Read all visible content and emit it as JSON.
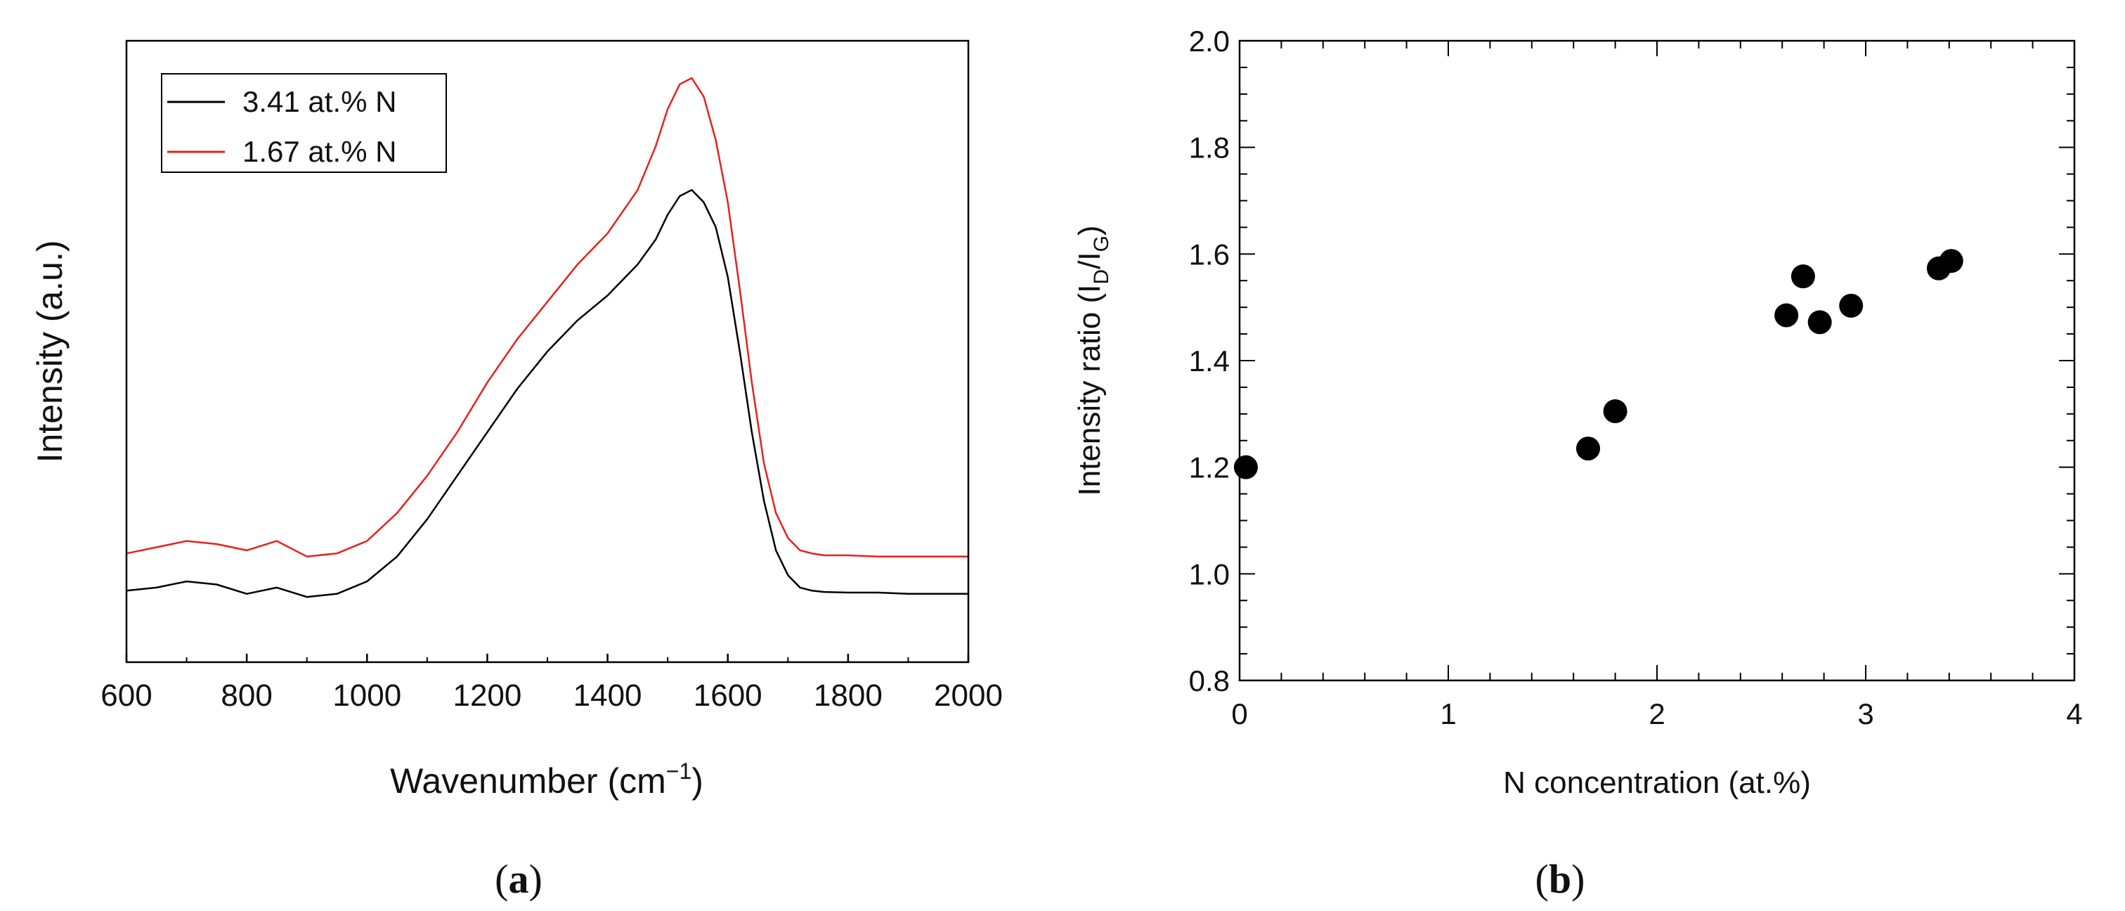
{
  "chart_data": [
    {
      "panel": "a",
      "type": "line",
      "panel_label": {
        "open": "(",
        "letter": "a",
        "close": ")"
      },
      "xlabel": {
        "text": "Wavenumber (cm",
        "sup": "−1",
        "close": ")"
      },
      "ylabel": "Intensity (a.u.)",
      "xlim": [
        600,
        2000
      ],
      "ylim": [
        0,
        1.0
      ],
      "xticks": [
        "600",
        "800",
        "1000",
        "1200",
        "1400",
        "1600",
        "1800",
        "2000"
      ],
      "yticks_shown": false,
      "legend_position": "top-left",
      "series": [
        {
          "name": "3.41 at.% N",
          "color": "#000000",
          "x": [
            600,
            650,
            700,
            750,
            800,
            850,
            900,
            950,
            1000,
            1050,
            1100,
            1150,
            1200,
            1250,
            1300,
            1350,
            1400,
            1450,
            1480,
            1500,
            1520,
            1540,
            1560,
            1580,
            1600,
            1620,
            1640,
            1660,
            1680,
            1700,
            1720,
            1740,
            1760,
            1800,
            1850,
            1900,
            2000
          ],
          "y": [
            0.115,
            0.12,
            0.13,
            0.125,
            0.11,
            0.12,
            0.105,
            0.11,
            0.13,
            0.17,
            0.23,
            0.3,
            0.37,
            0.44,
            0.5,
            0.55,
            0.59,
            0.64,
            0.68,
            0.72,
            0.75,
            0.76,
            0.74,
            0.7,
            0.62,
            0.5,
            0.37,
            0.26,
            0.18,
            0.14,
            0.12,
            0.115,
            0.113,
            0.112,
            0.112,
            0.11,
            0.11
          ]
        },
        {
          "name": "1.67 at.% N",
          "color": "#e8211c",
          "x": [
            600,
            650,
            700,
            750,
            800,
            850,
            900,
            950,
            1000,
            1050,
            1100,
            1150,
            1200,
            1250,
            1300,
            1350,
            1400,
            1450,
            1480,
            1500,
            1520,
            1540,
            1560,
            1580,
            1600,
            1620,
            1640,
            1660,
            1680,
            1700,
            1720,
            1740,
            1760,
            1800,
            1850,
            1900,
            2000
          ],
          "y": [
            0.175,
            0.185,
            0.195,
            0.19,
            0.18,
            0.195,
            0.17,
            0.175,
            0.195,
            0.24,
            0.3,
            0.37,
            0.45,
            0.52,
            0.58,
            0.64,
            0.69,
            0.76,
            0.83,
            0.89,
            0.93,
            0.94,
            0.91,
            0.84,
            0.74,
            0.6,
            0.45,
            0.32,
            0.24,
            0.2,
            0.18,
            0.175,
            0.172,
            0.172,
            0.17,
            0.17,
            0.17
          ]
        }
      ]
    },
    {
      "panel": "b",
      "type": "scatter",
      "panel_label": {
        "open": "(",
        "letter": "b",
        "close": ")"
      },
      "xlabel": "N concentration (at.%)",
      "ylabel": {
        "text": "Intensity ratio (I",
        "sub1": "D",
        "slash": "/I",
        "sub2": "G",
        "close": ")"
      },
      "xlim": [
        0,
        4
      ],
      "ylim": [
        0.8,
        2.0
      ],
      "xticks": [
        "0",
        "1",
        "2",
        "3",
        "4"
      ],
      "yticks": [
        "0.8",
        "1.0",
        "1.2",
        "1.4",
        "1.6",
        "1.8",
        "2.0"
      ],
      "marker_color": "#000000",
      "points": [
        {
          "x": 0.03,
          "y": 1.2
        },
        {
          "x": 1.67,
          "y": 1.235
        },
        {
          "x": 1.8,
          "y": 1.305
        },
        {
          "x": 2.62,
          "y": 1.485
        },
        {
          "x": 2.7,
          "y": 1.558
        },
        {
          "x": 2.78,
          "y": 1.472
        },
        {
          "x": 2.93,
          "y": 1.503
        },
        {
          "x": 3.35,
          "y": 1.573
        },
        {
          "x": 3.41,
          "y": 1.587
        }
      ]
    }
  ]
}
